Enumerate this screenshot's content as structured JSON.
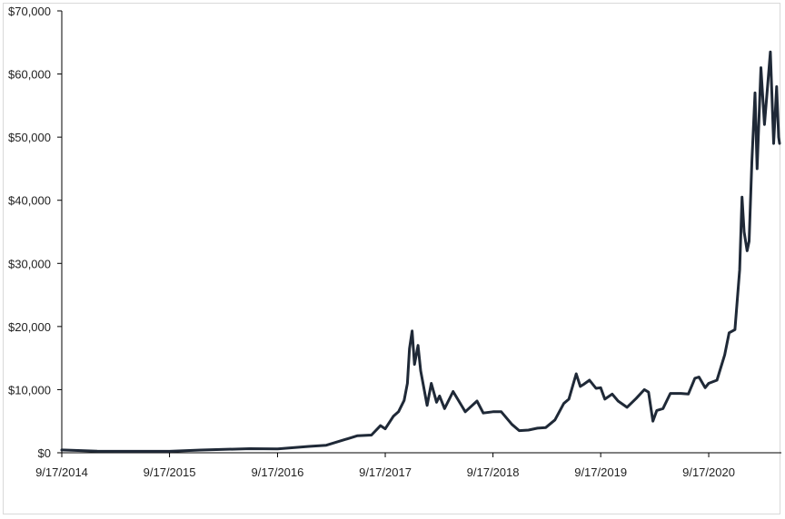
{
  "chart_data": {
    "type": "line",
    "title": "",
    "xlabel": "",
    "ylabel": "",
    "ylim": [
      0,
      70000
    ],
    "xlim": [
      "2014-09-17",
      "2021-05-15"
    ],
    "y_ticks": [
      {
        "value": 0,
        "label": "$0"
      },
      {
        "value": 10000,
        "label": "$10,000"
      },
      {
        "value": 20000,
        "label": "$20,000"
      },
      {
        "value": 30000,
        "label": "$30,000"
      },
      {
        "value": 40000,
        "label": "$40,000"
      },
      {
        "value": 50000,
        "label": "$50,000"
      },
      {
        "value": 60000,
        "label": "$60,000"
      },
      {
        "value": 70000,
        "label": "$70,000"
      }
    ],
    "x_ticks": [
      {
        "value": "2014-09-17",
        "label": "9/17/2014"
      },
      {
        "value": "2015-09-17",
        "label": "9/17/2015"
      },
      {
        "value": "2016-09-17",
        "label": "9/17/2016"
      },
      {
        "value": "2017-09-17",
        "label": "9/17/2017"
      },
      {
        "value": "2018-09-17",
        "label": "9/17/2018"
      },
      {
        "value": "2019-09-17",
        "label": "9/17/2019"
      },
      {
        "value": "2020-09-17",
        "label": "9/17/2020"
      }
    ],
    "grid": false,
    "legend": "none",
    "line_color": "#1f2937",
    "series": [
      {
        "x": [
          "2014-09-17",
          "2015-01-15",
          "2015-06-01",
          "2015-09-17",
          "2016-01-01",
          "2016-06-15",
          "2016-09-17",
          "2017-01-01",
          "2017-03-01",
          "2017-05-25",
          "2017-06-15",
          "2017-08-01",
          "2017-09-01",
          "2017-09-17",
          "2017-10-15",
          "2017-11-01",
          "2017-11-20",
          "2017-12-01",
          "2017-12-08",
          "2017-12-17",
          "2017-12-25",
          "2018-01-06",
          "2018-01-15",
          "2018-02-06",
          "2018-02-20",
          "2018-03-10",
          "2018-03-20",
          "2018-04-06",
          "2018-05-05",
          "2018-06-15",
          "2018-07-25",
          "2018-08-15",
          "2018-09-17",
          "2018-10-15",
          "2018-11-20",
          "2018-12-15",
          "2019-01-15",
          "2019-02-15",
          "2019-03-15",
          "2019-04-15",
          "2019-05-15",
          "2019-06-01",
          "2019-06-26",
          "2019-07-10",
          "2019-07-20",
          "2019-08-10",
          "2019-09-01",
          "2019-09-17",
          "2019-10-01",
          "2019-10-26",
          "2019-11-15",
          "2019-12-15",
          "2020-01-15",
          "2020-02-12",
          "2020-02-26",
          "2020-03-12",
          "2020-03-25",
          "2020-04-15",
          "2020-05-10",
          "2020-06-15",
          "2020-07-10",
          "2020-08-01",
          "2020-08-15",
          "2020-09-05",
          "2020-09-17",
          "2020-10-15",
          "2020-11-10",
          "2020-11-25",
          "2020-12-15",
          "2020-12-31",
          "2021-01-08",
          "2021-01-15",
          "2021-01-25",
          "2021-02-01",
          "2021-02-10",
          "2021-02-21",
          "2021-02-28",
          "2021-03-13",
          "2021-03-25",
          "2021-04-14",
          "2021-04-25",
          "2021-05-05",
          "2021-05-12",
          "2021-05-15"
        ],
        "y": [
          450,
          250,
          230,
          230,
          430,
          650,
          600,
          1000,
          1200,
          2400,
          2700,
          2800,
          4300,
          3800,
          5800,
          6500,
          8300,
          11000,
          16500,
          19300,
          14000,
          17000,
          13000,
          7500,
          11000,
          8000,
          9000,
          7000,
          9700,
          6500,
          8200,
          6300,
          6500,
          6500,
          4500,
          3500,
          3600,
          3900,
          4000,
          5200,
          7800,
          8500,
          12500,
          10500,
          10800,
          11500,
          10200,
          10300,
          8500,
          9300,
          8200,
          7200,
          8600,
          10000,
          9600,
          5000,
          6700,
          7000,
          9400,
          9400,
          9300,
          11800,
          12000,
          10300,
          11000,
          11500,
          15500,
          19000,
          19500,
          29000,
          40500,
          35000,
          32000,
          33500,
          46000,
          57000,
          45000,
          61000,
          52000,
          63500,
          49000,
          58000,
          50000,
          49000
        ]
      }
    ]
  }
}
